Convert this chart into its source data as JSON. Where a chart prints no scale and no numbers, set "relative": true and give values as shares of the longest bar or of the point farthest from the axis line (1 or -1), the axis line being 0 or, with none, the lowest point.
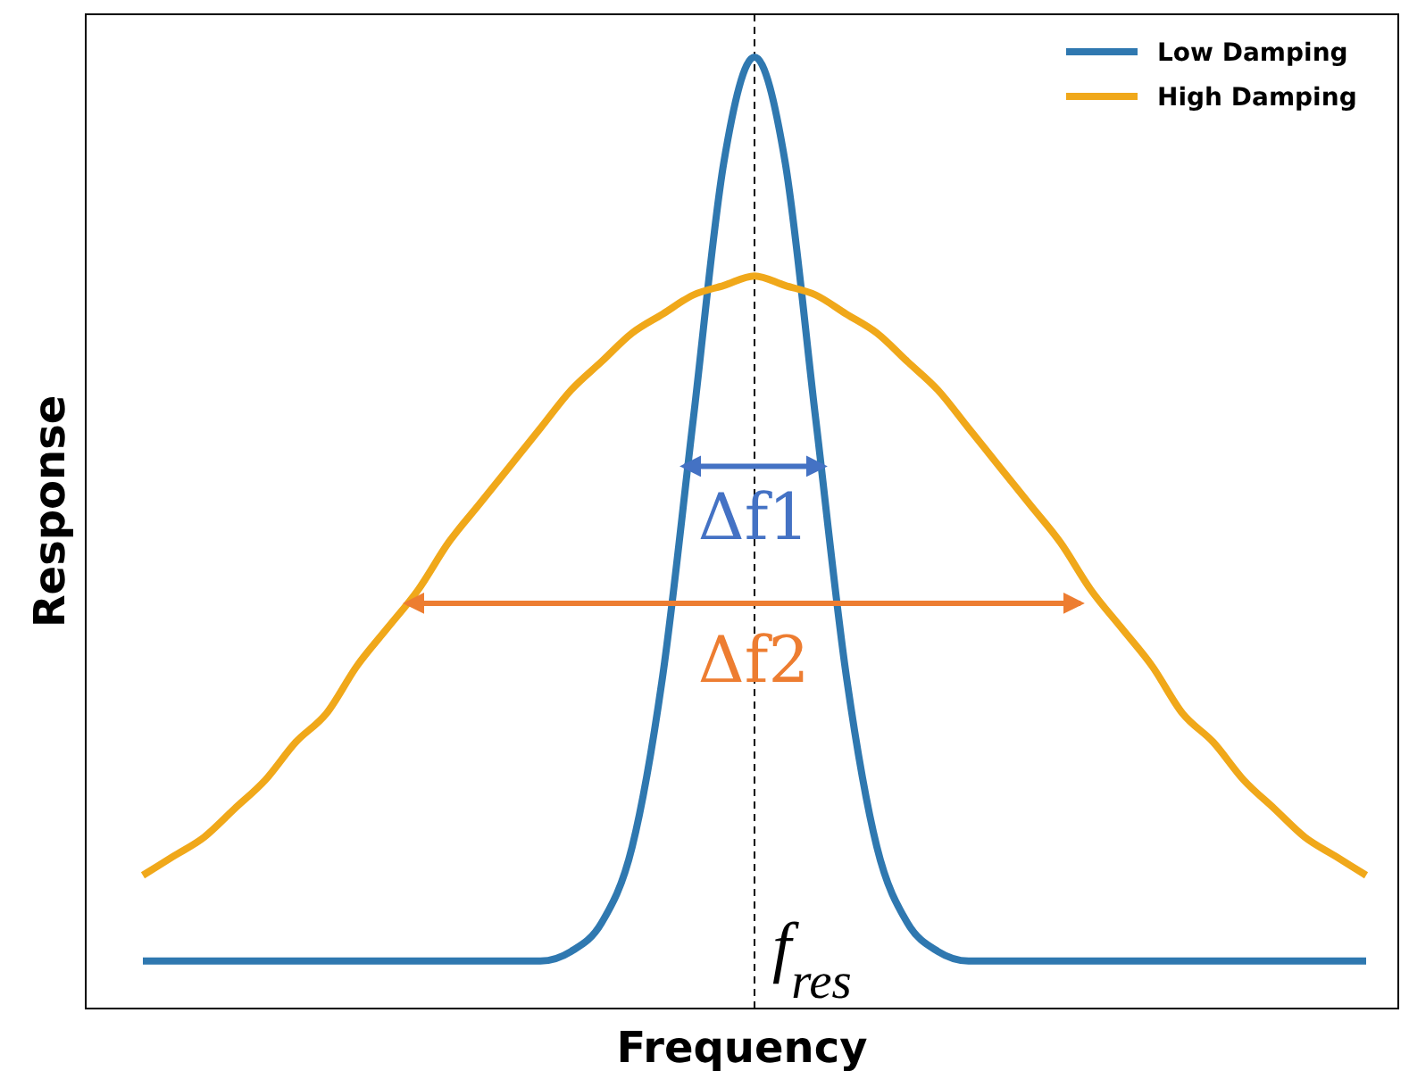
{
  "chart_data": {
    "type": "line",
    "relative": true,
    "xlabel": "Frequency",
    "ylabel": "Response",
    "categories": [
      null,
      null,
      null,
      null,
      null,
      null,
      null,
      null,
      null,
      null,
      null,
      null,
      null,
      null,
      null,
      null,
      null,
      null,
      null,
      null,
      null,
      null,
      null,
      null,
      null,
      null,
      null,
      null,
      null,
      null,
      null,
      null,
      null,
      null,
      null,
      null,
      null,
      null,
      null,
      null,
      null
    ],
    "series": [
      {
        "name": "Low Damping",
        "color": "#2f78b0",
        "values": [
          0.05,
          0.05,
          0.05,
          0.05,
          0.05,
          0.05,
          0.05,
          0.05,
          0.05,
          0.05,
          0.05,
          0.05,
          0.05,
          0.05,
          0.06,
          0.09,
          0.17,
          0.35,
          0.62,
          0.89,
          1.0,
          0.89,
          0.62,
          0.35,
          0.17,
          0.09,
          0.06,
          0.05,
          0.05,
          0.05,
          0.05,
          0.05,
          0.05,
          0.05,
          0.05,
          0.05,
          0.05,
          0.05,
          0.05,
          0.05,
          0.05
        ]
      },
      {
        "name": "High Damping",
        "color": "#f0a81a",
        "values": [
          0.14,
          0.16,
          0.18,
          0.21,
          0.24,
          0.28,
          0.31,
          0.36,
          0.4,
          0.44,
          0.49,
          0.53,
          0.57,
          0.61,
          0.65,
          0.68,
          0.71,
          0.73,
          0.75,
          0.76,
          0.77,
          0.76,
          0.75,
          0.73,
          0.71,
          0.68,
          0.65,
          0.61,
          0.57,
          0.53,
          0.49,
          0.44,
          0.4,
          0.36,
          0.31,
          0.28,
          0.24,
          0.21,
          0.18,
          0.16,
          0.14
        ]
      }
    ],
    "annotations": [
      "Δf1",
      "Δf2",
      "f$_{res}$"
    ],
    "legend": "top right",
    "marker": "none",
    "line_style": "solid"
  }
}
